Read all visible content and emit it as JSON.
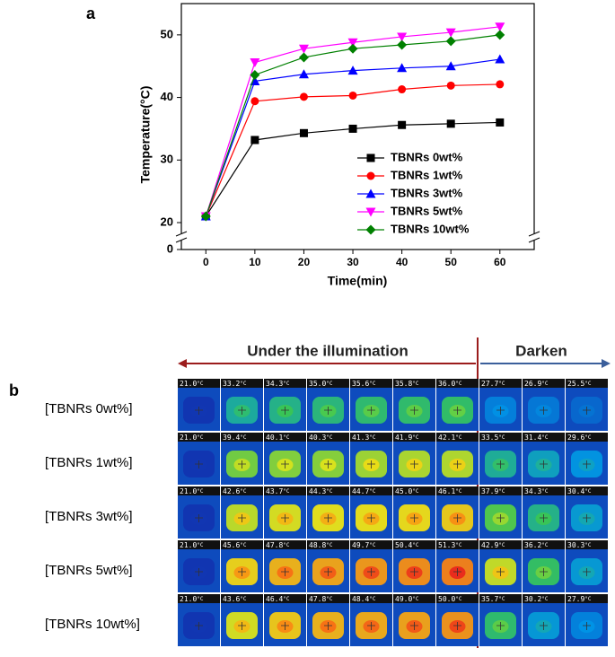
{
  "chart_data": {
    "type": "line",
    "panel_label": "a",
    "x_label": "Time(min)",
    "y_label": "Temperature(°C)",
    "x": [
      0,
      10,
      20,
      30,
      40,
      50,
      60
    ],
    "xlim": [
      -5,
      67
    ],
    "xticks": [
      0,
      10,
      20,
      30,
      40,
      50,
      60
    ],
    "ylim": [
      0,
      55
    ],
    "yticks": [
      0,
      20,
      30,
      40,
      50
    ],
    "y_break": [
      0,
      20
    ],
    "series": [
      {
        "name": "TBNRs 0wt%",
        "color": "#000000",
        "marker": "square",
        "values": [
          21.0,
          33.2,
          34.3,
          35.0,
          35.6,
          35.8,
          36.0
        ]
      },
      {
        "name": "TBNRs 1wt%",
        "color": "#ff0000",
        "marker": "circle",
        "values": [
          21.0,
          39.4,
          40.1,
          40.3,
          41.3,
          41.9,
          42.1
        ]
      },
      {
        "name": "TBNRs 3wt%",
        "color": "#0000ff",
        "marker": "triangle",
        "values": [
          21.0,
          42.6,
          43.7,
          44.3,
          44.7,
          45.0,
          46.1
        ]
      },
      {
        "name": "TBNRs 5wt%",
        "color": "#ff00ff",
        "marker": "triangle-down",
        "values": [
          21.0,
          45.6,
          47.8,
          48.8,
          49.7,
          50.4,
          51.3
        ]
      },
      {
        "name": "TBNRs 10wt%",
        "color": "#008000",
        "marker": "diamond",
        "values": [
          21.0,
          43.6,
          46.4,
          47.8,
          48.4,
          49.0,
          50.0
        ]
      }
    ]
  },
  "thermal": {
    "panel_label": "b",
    "illuminated_label": "Under the illumination",
    "dark_label": "Darken",
    "unit": "°C",
    "rows": [
      {
        "label": "[TBNRs 0wt%]",
        "readings": [
          "21.0",
          "33.2",
          "34.3",
          "35.0",
          "35.6",
          "35.8",
          "36.0",
          "27.7",
          "26.9",
          "25.5"
        ]
      },
      {
        "label": "[TBNRs 1wt%]",
        "readings": [
          "21.0",
          "39.4",
          "40.1",
          "40.3",
          "41.3",
          "41.9",
          "42.1",
          "33.5",
          "31.4",
          "29.6"
        ]
      },
      {
        "label": "[TBNRs 3wt%]",
        "readings": [
          "21.0",
          "42.6",
          "43.7",
          "44.3",
          "44.7",
          "45.0",
          "46.1",
          "37.9",
          "34.3",
          "30.4"
        ]
      },
      {
        "label": "[TBNRs 5wt%]",
        "readings": [
          "21.0",
          "45.6",
          "47.8",
          "48.8",
          "49.7",
          "50.4",
          "51.3",
          "42.9",
          "36.2",
          "30.3"
        ]
      },
      {
        "label": "[TBNRs 10wt%]",
        "readings": [
          "21.0",
          "43.6",
          "46.4",
          "47.8",
          "48.4",
          "49.0",
          "50.0",
          "35.7",
          "30.2",
          "27.9"
        ]
      }
    ]
  }
}
